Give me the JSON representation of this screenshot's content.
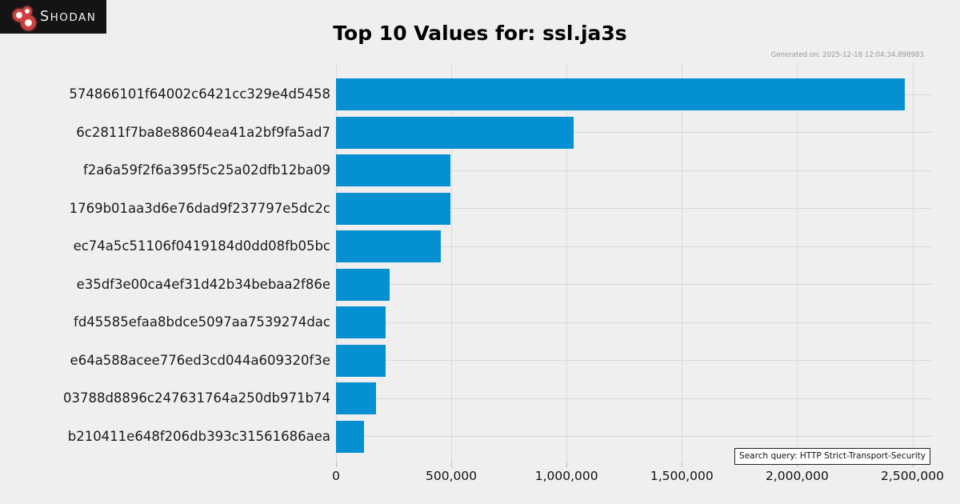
{
  "logo": {
    "brand_cap": "S",
    "brand_rest": "HODAN",
    "icon": "shodan-circles-icon"
  },
  "header": {
    "title": "Top 10 Values for: ssl.ja3s",
    "generated": "Generated on: 2025-12-18 12:04:34.898983"
  },
  "chart_data": {
    "type": "bar",
    "orientation": "horizontal",
    "title": "Top 10 Values for: ssl.ja3s",
    "categories": [
      "574866101f64002c6421cc329e4d5458",
      "6c2811f7ba8e88604ea41a2bf9fa5ad7",
      "f2a6a59f2f6a395f5c25a02dfb12ba09",
      "1769b01aa3d6e76dad9f237797e5dc2c",
      "ec74a5c51106f0419184d0dd08fb05bc",
      "e35df3e00ca4ef31d42b34bebaa2f86e",
      "fd45585efaa8bdce5097aa7539274dac",
      "e64a588acee776ed3cd044a609320f3e",
      "03788d8896c247631764a250db971b74",
      "b210411e648f206db393c31561686aea"
    ],
    "values": [
      2466000,
      1030000,
      496000,
      496000,
      454000,
      232000,
      216000,
      215000,
      173000,
      121000
    ],
    "xlim": [
      0,
      2585000
    ],
    "x_ticks": [
      0,
      500000,
      1000000,
      1500000,
      2000000,
      2500000
    ],
    "x_tick_labels": [
      "0",
      "500,000",
      "1,000,000",
      "1,500,000",
      "2,000,000",
      "2,500,000"
    ],
    "bar_color": "#0590d2",
    "grid": true,
    "legend": null,
    "xlabel": "",
    "ylabel": ""
  },
  "footer": {
    "search_query": "Search query: HTTP Strict-Transport-Security"
  }
}
